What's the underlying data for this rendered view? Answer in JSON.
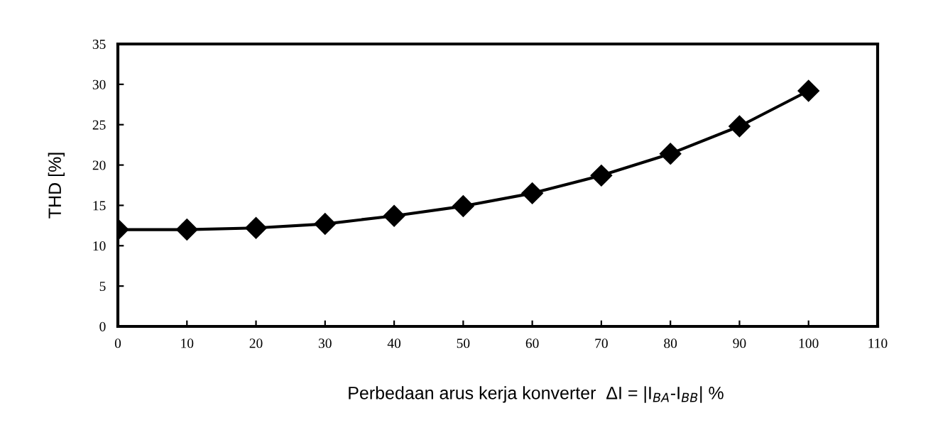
{
  "chart_data": {
    "type": "line",
    "xlabel": "Perbedaan arus kerja konverter  ΔI = |I$_{BA}$-I$_{BB}$| %",
    "ylabel": "THD [%]",
    "x": [
      0,
      10,
      20,
      30,
      40,
      50,
      60,
      70,
      80,
      90,
      100
    ],
    "series": [
      {
        "color": "#000000",
        "values": [
          12.0,
          12.0,
          12.2,
          12.7,
          13.7,
          14.9,
          16.5,
          18.7,
          21.4,
          24.8,
          29.2
        ]
      }
    ],
    "xlim": [
      0,
      110
    ],
    "xticks": [
      0,
      10,
      20,
      30,
      40,
      50,
      60,
      70,
      80,
      90,
      100,
      110
    ],
    "ylim": [
      0,
      35
    ],
    "yticks": [
      0,
      5,
      10,
      15,
      20,
      25,
      30,
      35
    ],
    "marker": "diamond",
    "line_style": "solid",
    "grid": false,
    "legend": false
  }
}
